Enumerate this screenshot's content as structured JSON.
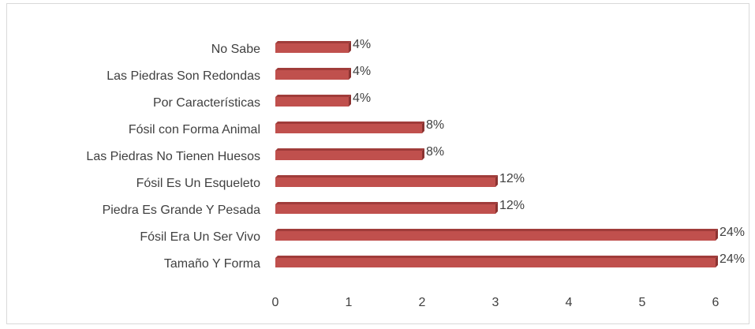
{
  "chart_data": {
    "type": "barh",
    "categories": [
      "No Sabe",
      "Las Piedras Son Redondas",
      "Por Características",
      "Fósil con Forma Animal",
      "Las Piedras No Tienen Huesos",
      "Fósil Es Un Esqueleto",
      "Piedra Es Grande Y Pesada",
      "Fósil Era Un Ser Vivo",
      "Tamaño Y Forma"
    ],
    "values": [
      1,
      1,
      1,
      2,
      2,
      3,
      3,
      6,
      6
    ],
    "value_labels": [
      "4%",
      "4%",
      "4%",
      "8%",
      "8%",
      "12%",
      "12%",
      "24%",
      "24%"
    ],
    "color": "#c0504d",
    "xlim": [
      0,
      6
    ],
    "xticks": [
      0,
      1,
      2,
      3,
      4,
      5,
      6
    ],
    "grid": false
  }
}
